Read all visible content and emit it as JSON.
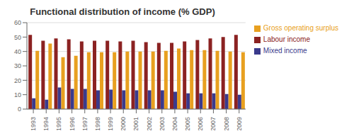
{
  "chart_data": {
    "type": "bar",
    "title": "Functional distribution of income (% GDP)",
    "categories": [
      "1993",
      "1994",
      "1995",
      "1996",
      "1997",
      "1998",
      "1999",
      "2000",
      "2001",
      "2002",
      "2003",
      "2004",
      "2005",
      "2006",
      "2007",
      "2008",
      "2009"
    ],
    "series": [
      {
        "name": "Labour income",
        "color": "#8B2222",
        "values": [
          51.5,
          47.5,
          49.0,
          48.5,
          47.0,
          47.5,
          47.5,
          47.0,
          47.5,
          46.5,
          46.0,
          46.0,
          47.0,
          48.0,
          49.0,
          50.0,
          51.5
        ]
      },
      {
        "name": "Mixed income",
        "color": "#3A3A8C",
        "values": [
          7.5,
          6.5,
          15.0,
          14.0,
          14.0,
          13.0,
          13.5,
          13.0,
          13.0,
          13.0,
          13.0,
          12.0,
          11.0,
          11.0,
          11.0,
          10.5,
          10.0
        ]
      },
      {
        "name": "Gross operating surplus",
        "color": "#E8A020",
        "values": [
          40.5,
          45.5,
          36.0,
          37.0,
          39.5,
          39.5,
          39.5,
          40.0,
          40.0,
          40.0,
          40.5,
          42.0,
          41.0,
          41.0,
          40.5,
          40.0,
          39.5
        ]
      }
    ],
    "ylim": [
      0,
      60
    ],
    "yticks": [
      0,
      10,
      20,
      30,
      40,
      50,
      60
    ],
    "grid": true,
    "legend": "right"
  }
}
